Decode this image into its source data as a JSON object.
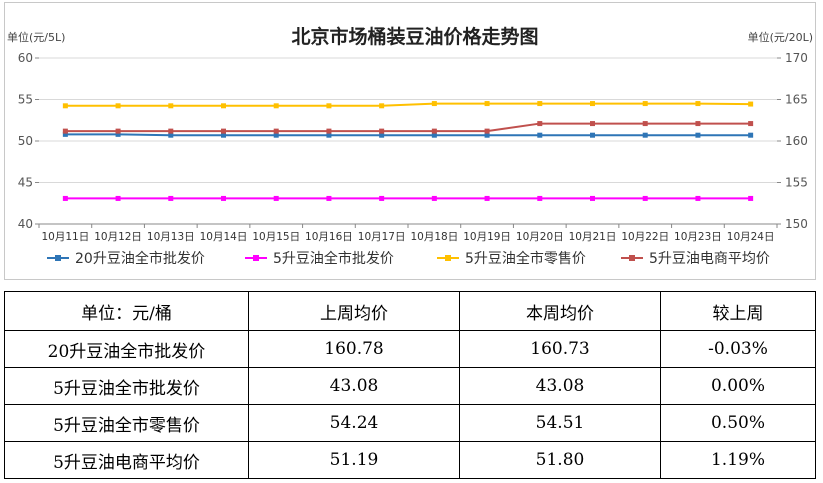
{
  "chart_data": {
    "type": "line",
    "title": "北京市场桶装豆油价格走势图",
    "left_unit": "单位(元/5L)",
    "right_unit": "单位(元/20L)",
    "left_ylim": [
      40,
      60
    ],
    "left_ticks": [
      "40",
      "45",
      "50",
      "55",
      "60"
    ],
    "right_ylim": [
      150,
      170
    ],
    "right_ticks": [
      "150",
      "155",
      "160",
      "165",
      "170"
    ],
    "categories": [
      "10月11日",
      "10月12日",
      "10月13日",
      "10月14日",
      "10月15日",
      "10月16日",
      "10月17日",
      "10月18日",
      "10月19日",
      "10月20日",
      "10月21日",
      "10月22日",
      "10月23日",
      "10月24日"
    ],
    "legend_position": "bottom",
    "series": [
      {
        "name": "20升豆油全市批发价",
        "axis": "right",
        "color": "#2e75b6",
        "marker": "square",
        "values": [
          160.8,
          160.8,
          160.7,
          160.7,
          160.7,
          160.7,
          160.7,
          160.7,
          160.7,
          160.7,
          160.7,
          160.7,
          160.7,
          160.7
        ]
      },
      {
        "name": "5升豆油全市批发价",
        "axis": "left",
        "color": "#ff00ff",
        "marker": "square",
        "values": [
          43.08,
          43.08,
          43.08,
          43.08,
          43.08,
          43.08,
          43.08,
          43.08,
          43.08,
          43.08,
          43.08,
          43.08,
          43.08,
          43.08
        ]
      },
      {
        "name": "5升豆油全市零售价",
        "axis": "left",
        "color": "#ffc000",
        "marker": "square",
        "values": [
          54.24,
          54.24,
          54.24,
          54.24,
          54.24,
          54.24,
          54.24,
          54.51,
          54.51,
          54.51,
          54.51,
          54.51,
          54.51,
          54.45
        ]
      },
      {
        "name": "5升豆油电商平均价",
        "axis": "left",
        "color": "#c0504d",
        "marker": "square",
        "values": [
          51.19,
          51.19,
          51.19,
          51.19,
          51.19,
          51.19,
          51.19,
          51.19,
          51.19,
          52.1,
          52.1,
          52.1,
          52.1,
          52.1
        ]
      }
    ]
  },
  "table": {
    "headers": [
      "单位：元/桶",
      "上周均价",
      "本周均价",
      "较上周"
    ],
    "rows": [
      [
        "20升豆油全市批发价",
        "160.78",
        "160.73",
        "-0.03%"
      ],
      [
        "5升豆油全市批发价",
        "43.08",
        "43.08",
        "0.00%"
      ],
      [
        "5升豆油全市零售价",
        "54.24",
        "54.51",
        "0.50%"
      ],
      [
        "5升豆油电商平均价",
        "51.19",
        "51.80",
        "1.19%"
      ]
    ]
  }
}
